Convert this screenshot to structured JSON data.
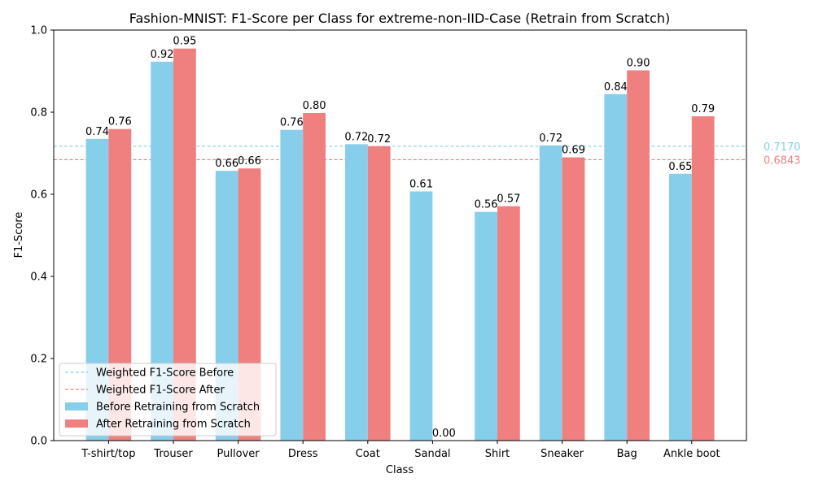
{
  "chart_data": {
    "type": "bar",
    "title": "Fashion-MNIST: F1-Score per Class for extreme-non-IID-Case (Retrain from Scratch)",
    "xlabel": "Class",
    "ylabel": "F1-Score",
    "ylim": [
      0,
      1.0
    ],
    "yticks": [
      "0.0",
      "0.2",
      "0.4",
      "0.6",
      "0.8",
      "1.0"
    ],
    "categories": [
      "T-shirt/top",
      "Trouser",
      "Pullover",
      "Dress",
      "Coat",
      "Sandal",
      "Shirt",
      "Sneaker",
      "Bag",
      "Ankle boot"
    ],
    "series": [
      {
        "name": "Before Retraining from Scratch",
        "color": "#87ceeb",
        "values": [
          0.735,
          0.923,
          0.657,
          0.757,
          0.722,
          0.607,
          0.557,
          0.719,
          0.844,
          0.65
        ],
        "labels": [
          "0.74",
          "0.92",
          "0.66",
          "0.76",
          "0.72",
          "0.61",
          "0.56",
          "0.72",
          "0.84",
          "0.65"
        ]
      },
      {
        "name": "After Retraining from Scratch",
        "color": "#f08080",
        "values": [
          0.759,
          0.955,
          0.663,
          0.798,
          0.717,
          0.0,
          0.571,
          0.69,
          0.902,
          0.79
        ],
        "labels": [
          "0.76",
          "0.95",
          "0.66",
          "0.80",
          "0.72",
          "0.00",
          "0.57",
          "0.69",
          "0.90",
          "0.79"
        ]
      }
    ],
    "reference_lines": [
      {
        "name": "Weighted F1-Score Before",
        "value": 0.717,
        "label": "0.7170",
        "color": "#87ceeb",
        "style": "dashed"
      },
      {
        "name": "Weighted F1-Score After",
        "value": 0.6843,
        "label": "0.6843",
        "color": "#f08080",
        "style": "dashed"
      }
    ],
    "legend_position": "lower-left",
    "grid": false
  }
}
